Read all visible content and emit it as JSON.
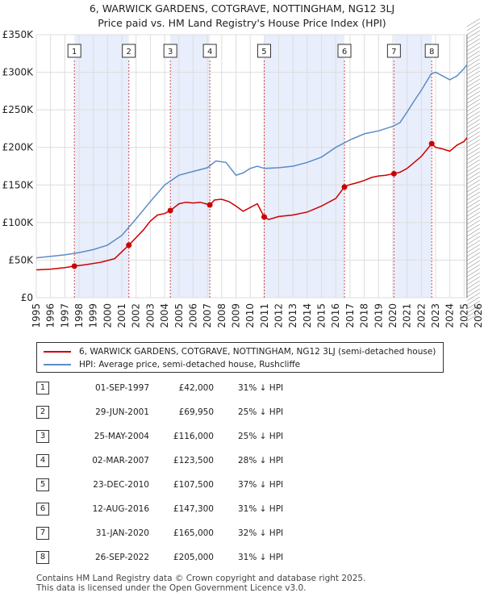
{
  "title_lines": [
    "6, WARWICK GARDENS, COTGRAVE, NOTTINGHAM, NG12 3LJ",
    "Price paid vs. HM Land Registry's House Price Index (HPI)"
  ],
  "colors": {
    "price_line": "#cc0000",
    "hpi_line": "#5b8cc8",
    "band": "#e8eefb",
    "marker_line": "#cc0000",
    "grid": "#dddddd"
  },
  "chart_data": {
    "type": "line",
    "title": "Price paid vs. HM Land Registry's House Price Index (HPI)",
    "xlabel": "",
    "ylabel": "",
    "xlim": [
      1995,
      2026
    ],
    "ylim": [
      0,
      350000
    ],
    "grid": true,
    "x_ticks": [
      1995,
      1996,
      1997,
      1998,
      1999,
      2000,
      2001,
      2002,
      2003,
      2004,
      2005,
      2006,
      2007,
      2008,
      2009,
      2010,
      2011,
      2012,
      2013,
      2014,
      2015,
      2016,
      2017,
      2018,
      2019,
      2020,
      2021,
      2022,
      2023,
      2024,
      2025,
      2026
    ],
    "x_tick_labels": [
      "1995",
      "1996",
      "1997",
      "1998",
      "1999",
      "2000",
      "2001",
      "2002",
      "2003",
      "2004",
      "2005",
      "2006",
      "2007",
      "2008",
      "2009",
      "2010",
      "2011",
      "2012",
      "2013",
      "2014",
      "2015",
      "2016",
      "2017",
      "2018",
      "2019",
      "2020",
      "2021",
      "2022",
      "2023",
      "2024",
      "2025",
      "2026"
    ],
    "y_ticks": [
      0,
      50000,
      100000,
      150000,
      200000,
      250000,
      300000,
      350000
    ],
    "y_tick_labels": [
      "£0",
      "£50K",
      "£100K",
      "£150K",
      "£200K",
      "£250K",
      "£300K",
      "£350K"
    ],
    "series": [
      {
        "name": "6, WARWICK GARDENS, COTGRAVE, NOTTINGHAM, NG12 3LJ (semi-detached house)",
        "color": "#cc0000",
        "x": [
          1995.0,
          1996.0,
          1997.0,
          1997.67,
          1998.5,
          1999.5,
          2000.5,
          2001.49,
          2002.0,
          2002.5,
          2003.0,
          2003.5,
          2004.0,
          2004.4,
          2005.0,
          2005.5,
          2006.0,
          2006.5,
          2007.17,
          2007.5,
          2008.0,
          2008.5,
          2009.0,
          2009.5,
          2010.0,
          2010.5,
          2010.98,
          2011.3,
          2012.0,
          2013.0,
          2014.0,
          2015.0,
          2016.0,
          2016.6,
          2016.9,
          2017.5,
          2018.0,
          2018.5,
          2019.0,
          2019.5,
          2020.08,
          2020.5,
          2021.0,
          2021.5,
          2022.0,
          2022.73,
          2023.0,
          2023.5,
          2024.0,
          2024.5,
          2025.0,
          2025.2
        ],
        "y": [
          37000,
          38000,
          40000,
          42000,
          44000,
          47000,
          52000,
          69950,
          80000,
          90000,
          102000,
          110000,
          112000,
          116000,
          125000,
          127000,
          126000,
          127000,
          123500,
          130000,
          131000,
          128000,
          122000,
          115000,
          120000,
          125000,
          107500,
          104000,
          108000,
          110000,
          114000,
          122000,
          132000,
          147300,
          150000,
          153000,
          156000,
          160000,
          162000,
          163000,
          165000,
          167000,
          172000,
          180000,
          188000,
          205000,
          200000,
          198000,
          195000,
          203000,
          208000,
          213000
        ]
      },
      {
        "name": "HPI: Average price, semi-detached house, Rushcliffe",
        "color": "#5b8cc8",
        "x": [
          1995.0,
          1996.0,
          1997.0,
          1998.0,
          1999.0,
          2000.0,
          2001.0,
          2002.0,
          2003.0,
          2004.0,
          2005.0,
          2006.0,
          2007.0,
          2007.6,
          2008.3,
          2009.0,
          2009.5,
          2010.0,
          2010.5,
          2011.0,
          2012.0,
          2013.0,
          2014.0,
          2015.0,
          2016.0,
          2017.0,
          2018.0,
          2019.0,
          2020.0,
          2020.5,
          2021.0,
          2021.5,
          2022.0,
          2022.7,
          2023.0,
          2023.5,
          2024.0,
          2024.5,
          2025.0,
          2025.2
        ],
        "y": [
          53000,
          55000,
          57000,
          60000,
          64000,
          70000,
          83000,
          105000,
          128000,
          150000,
          163000,
          168000,
          173000,
          182000,
          180000,
          163000,
          166000,
          172000,
          175000,
          172000,
          173000,
          175000,
          180000,
          187000,
          200000,
          210000,
          218000,
          222000,
          228000,
          233000,
          247000,
          262000,
          276000,
          298000,
          300000,
          295000,
          290000,
          295000,
          305000,
          310000
        ]
      }
    ],
    "sales": [
      {
        "id": "1",
        "date": "01-SEP-1997",
        "x": 1997.67,
        "price": "£42,000",
        "value": 42000,
        "hpi": "31% ↓ HPI"
      },
      {
        "id": "2",
        "date": "29-JUN-2001",
        "x": 2001.49,
        "price": "£69,950",
        "value": 69950,
        "hpi": "25% ↓ HPI"
      },
      {
        "id": "3",
        "date": "25-MAY-2004",
        "x": 2004.4,
        "price": "£116,000",
        "value": 116000,
        "hpi": "25% ↓ HPI"
      },
      {
        "id": "4",
        "date": "02-MAR-2007",
        "x": 2007.17,
        "price": "£123,500",
        "value": 123500,
        "hpi": "28% ↓ HPI"
      },
      {
        "id": "5",
        "date": "23-DEC-2010",
        "x": 2010.98,
        "price": "£107,500",
        "value": 107500,
        "hpi": "37% ↓ HPI"
      },
      {
        "id": "6",
        "date": "12-AUG-2016",
        "x": 2016.61,
        "price": "£147,300",
        "value": 147300,
        "hpi": "31% ↓ HPI"
      },
      {
        "id": "7",
        "date": "31-JAN-2020",
        "x": 2020.08,
        "price": "£165,000",
        "value": 165000,
        "hpi": "32% ↓ HPI"
      },
      {
        "id": "8",
        "date": "26-SEP-2022",
        "x": 2022.73,
        "price": "£205,000",
        "value": 205000,
        "hpi": "31% ↓ HPI"
      }
    ],
    "shaded_ranges": [
      [
        1997.67,
        2001.49
      ],
      [
        2004.4,
        2007.17
      ],
      [
        2010.98,
        2016.61
      ],
      [
        2020.08,
        2022.73
      ]
    ],
    "forecast_start": 2025.2
  },
  "legend": {
    "price_label": "6, WARWICK GARDENS, COTGRAVE, NOTTINGHAM, NG12 3LJ (semi-detached house)",
    "hpi_label": "HPI: Average price, semi-detached house, Rushcliffe"
  },
  "footer": {
    "line1": "Contains HM Land Registry data © Crown copyright and database right 2025.",
    "line2": "This data is licensed under the Open Government Licence v3.0."
  }
}
